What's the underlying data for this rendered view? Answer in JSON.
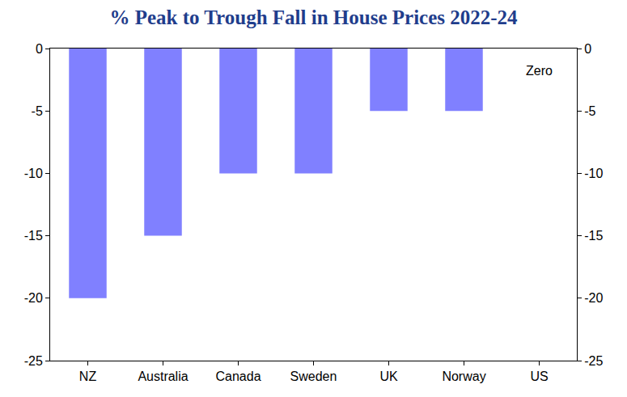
{
  "chart_data": {
    "type": "bar",
    "title": "% Peak to Trough Fall in House Prices 2022-24",
    "categories": [
      "NZ",
      "Australia",
      "Canada",
      "Sweden",
      "UK",
      "Norway",
      "US"
    ],
    "values": [
      -20,
      -15,
      -10,
      -10,
      -5,
      -5,
      0
    ],
    "color": "#8080ff",
    "ylim": [
      -25,
      0
    ],
    "yticks": [
      -25,
      -20,
      -15,
      -10,
      -5,
      0
    ],
    "y2lim": [
      -25,
      0
    ],
    "y2ticks": [
      -25,
      -20,
      -15,
      -10,
      -5,
      0
    ],
    "grid": false,
    "annotations": [
      {
        "text": "Zero",
        "x": "US"
      }
    ]
  }
}
